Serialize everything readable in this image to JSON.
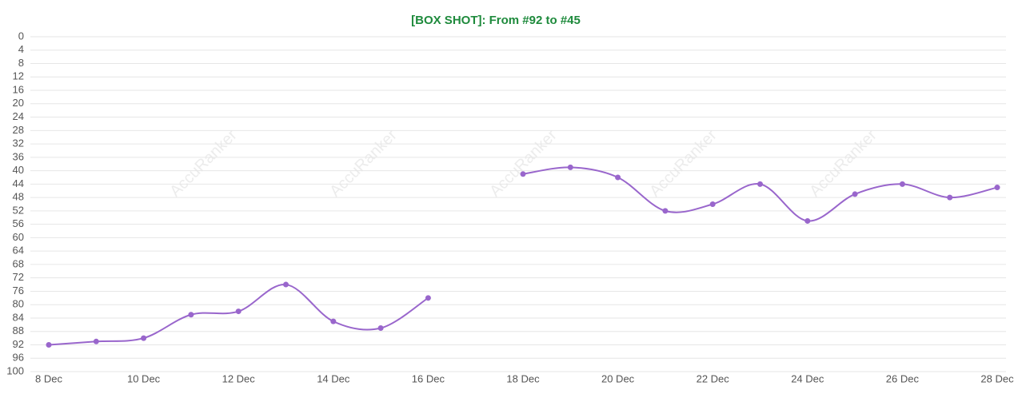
{
  "chart_data": {
    "type": "line",
    "title": "[BOX SHOT]: From #92 to #45",
    "categories": [
      "8 Dec",
      null,
      "10 Dec",
      null,
      "12 Dec",
      null,
      "14 Dec",
      null,
      "16 Dec",
      null,
      "18 Dec",
      null,
      "20 Dec",
      null,
      "22 Dec",
      null,
      "24 Dec",
      null,
      "26 Dec",
      null,
      "28 Dec"
    ],
    "series": [
      {
        "color": "#9966cc",
        "values": [
          92,
          91,
          90,
          83,
          82,
          74,
          85,
          87,
          78,
          null,
          41,
          39,
          42,
          52,
          50,
          44,
          55,
          47,
          44,
          48,
          45
        ]
      }
    ],
    "ylim": [
      0,
      100
    ],
    "invert_y": true,
    "yticks": [
      0,
      4,
      8,
      12,
      16,
      20,
      24,
      28,
      32,
      36,
      40,
      44,
      48,
      52,
      56,
      60,
      64,
      68,
      72,
      76,
      80,
      84,
      88,
      92,
      96,
      100
    ],
    "grid": true,
    "watermark": "AccuRanker"
  }
}
